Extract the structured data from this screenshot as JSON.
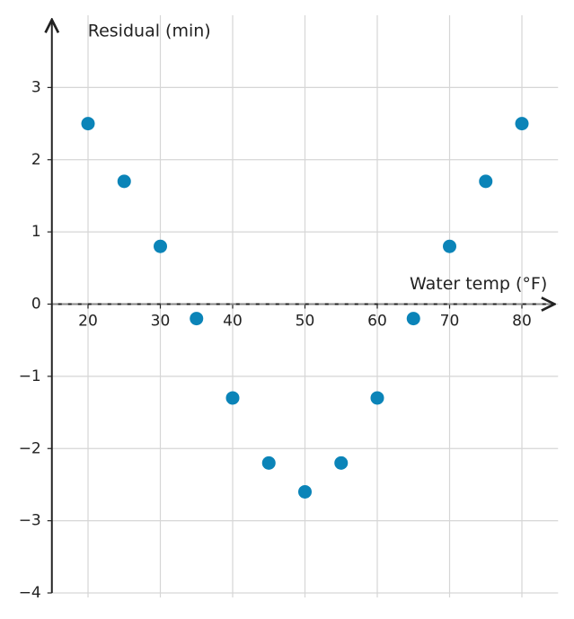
{
  "chart_data": {
    "type": "scatter",
    "x_label": "Water temp (°F)",
    "y_label": "Residual (min)",
    "x": [
      20,
      25,
      30,
      35,
      40,
      45,
      50,
      55,
      60,
      65,
      70,
      75,
      80
    ],
    "series": [
      {
        "color": "#0b84b8",
        "values": [
          2.5,
          1.7,
          0.8,
          -0.2,
          -1.3,
          -2.2,
          -2.6,
          -2.2,
          -1.3,
          -0.2,
          0.8,
          1.7,
          2.5
        ]
      }
    ],
    "xlim": [
      15,
      85
    ],
    "ylim": [
      -4,
      4
    ],
    "xticks": [
      20,
      30,
      40,
      50,
      60,
      70,
      80
    ],
    "yticks": [
      {
        "value": -4,
        "label": "−4"
      },
      {
        "value": -3,
        "label": "−3"
      },
      {
        "value": -2,
        "label": "−2"
      },
      {
        "value": -1,
        "label": "−1"
      },
      0,
      1,
      2,
      3
    ],
    "grid": true
  }
}
